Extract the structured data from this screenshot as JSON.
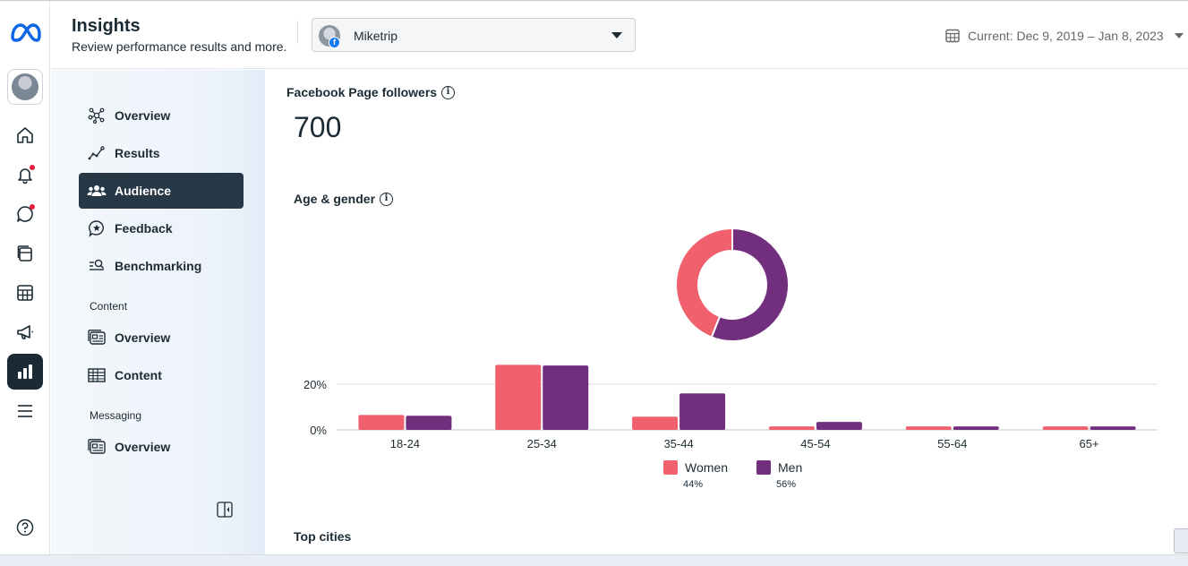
{
  "header": {
    "title": "Insights",
    "subtitle": "Review performance results and more.",
    "page_name": "Miketrip",
    "date_range": "Current: Dec 9, 2019 – Jan 8, 2023"
  },
  "rail": {
    "items": [
      {
        "icon": "home-icon"
      },
      {
        "icon": "bell-icon",
        "notify": true
      },
      {
        "icon": "chat-bubble-icon",
        "notify": true
      },
      {
        "icon": "posts-icon"
      },
      {
        "icon": "calendar-grid-icon"
      },
      {
        "icon": "megaphone-icon"
      },
      {
        "icon": "insights-bar-icon",
        "active": true
      },
      {
        "icon": "menu-icon"
      }
    ],
    "help_icon": "help-icon"
  },
  "subnav": {
    "items": [
      {
        "label": "Overview",
        "icon": "network-icon"
      },
      {
        "label": "Results",
        "icon": "trend-line-icon"
      },
      {
        "label": "Audience",
        "icon": "people-icon",
        "active": true
      },
      {
        "label": "Feedback",
        "icon": "star-bubble-icon"
      },
      {
        "label": "Benchmarking",
        "icon": "list-search-icon"
      }
    ],
    "content_section": "Content",
    "content_items": [
      {
        "label": "Overview",
        "icon": "content-overview-icon"
      },
      {
        "label": "Content",
        "icon": "table-icon"
      }
    ],
    "messaging_section": "Messaging",
    "messaging_items": [
      {
        "label": "Overview",
        "icon": "messaging-overview-icon"
      }
    ]
  },
  "main": {
    "followers_label": "Facebook Page followers",
    "followers_value": "700",
    "age_gender_label": "Age & gender",
    "top_cities_label": "Top cities"
  },
  "colors": {
    "women": "#f0606d",
    "men": "#722f7d",
    "active_nav": "#263746"
  },
  "chart_data": [
    {
      "type": "pie",
      "title": "Age & gender (donut)",
      "categories": [
        "Women",
        "Men"
      ],
      "values": [
        44,
        56
      ]
    },
    {
      "type": "bar",
      "title": "Age & gender",
      "categories": [
        "18-24",
        "25-34",
        "35-44",
        "45-54",
        "55-64",
        "65+"
      ],
      "series": [
        {
          "name": "Women",
          "values": [
            6.5,
            28.5,
            5.8,
            1.5,
            1.5,
            1.5
          ]
        },
        {
          "name": "Men",
          "values": [
            6.2,
            28.2,
            16.0,
            3.5,
            1.5,
            1.5
          ]
        }
      ],
      "yticks": [
        "0%",
        "20%"
      ],
      "ylim": [
        0,
        30
      ],
      "legend": [
        {
          "name": "Women",
          "pct": "44%"
        },
        {
          "name": "Men",
          "pct": "56%"
        }
      ]
    }
  ]
}
